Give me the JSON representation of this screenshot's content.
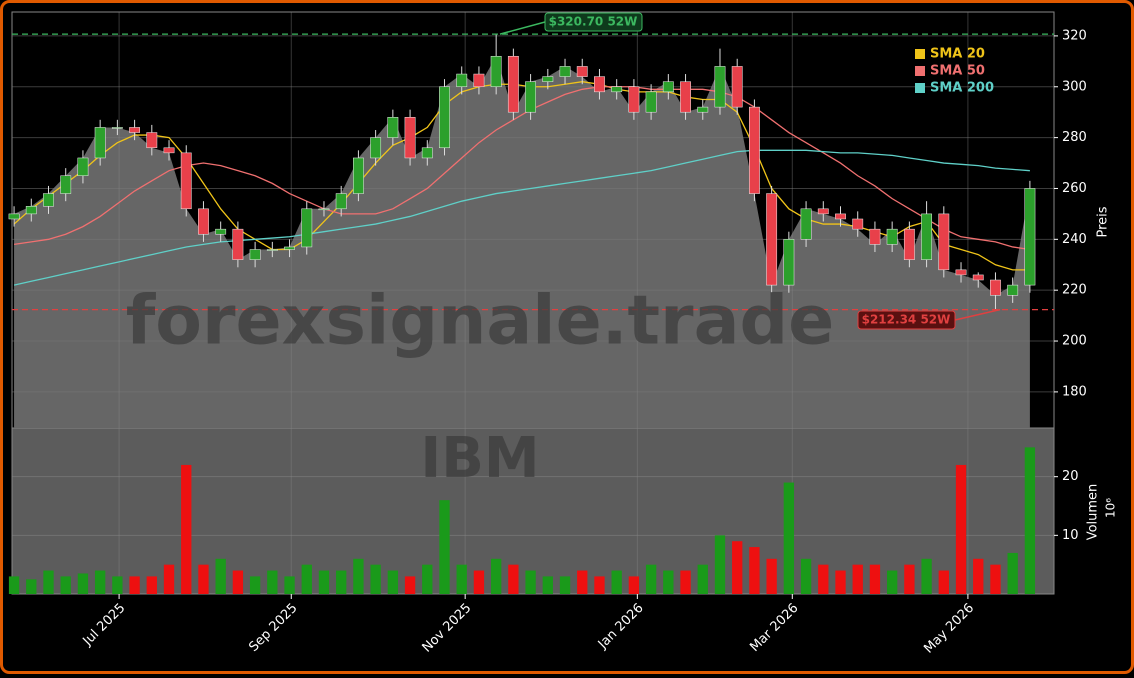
{
  "chart_data": {
    "type": "candlestick",
    "price": {
      "open": [
        248,
        250,
        253,
        258,
        265,
        272,
        284,
        284,
        282,
        276,
        274,
        252,
        242,
        244,
        232,
        236,
        236,
        237,
        252,
        252,
        258,
        272,
        280,
        288,
        272,
        276,
        300,
        305,
        300,
        312,
        290,
        302,
        304,
        308,
        304,
        298,
        300,
        290,
        298,
        302,
        290,
        292,
        308,
        292,
        258,
        222,
        240,
        252,
        250,
        248,
        244,
        238,
        244,
        232,
        250,
        228,
        226,
        224,
        218,
        222
      ],
      "high": [
        253,
        256,
        261,
        268,
        275,
        287,
        287,
        287,
        285,
        279,
        277,
        255,
        247,
        247,
        239,
        239,
        240,
        255,
        255,
        261,
        275,
        283,
        291,
        291,
        279,
        303,
        308,
        308,
        320.7,
        315,
        305,
        307,
        311,
        311,
        307,
        303,
        303,
        301,
        305,
        305,
        295,
        315,
        311,
        295,
        261,
        243,
        255,
        255,
        253,
        251,
        247,
        247,
        247,
        255,
        253,
        231,
        227,
        227,
        225,
        263
      ],
      "low": [
        245,
        247,
        250,
        255,
        262,
        269,
        281,
        279,
        273,
        271,
        249,
        239,
        239,
        229,
        229,
        233,
        233,
        234,
        249,
        249,
        255,
        269,
        277,
        269,
        269,
        273,
        297,
        297,
        297,
        287,
        287,
        299,
        301,
        301,
        295,
        295,
        287,
        287,
        295,
        287,
        287,
        289,
        289,
        255,
        219,
        219,
        237,
        247,
        245,
        241,
        235,
        235,
        229,
        229,
        225,
        223,
        221,
        212.34,
        215,
        219
      ],
      "close": [
        250,
        253,
        258,
        265,
        272,
        284,
        284,
        282,
        276,
        274,
        252,
        242,
        244,
        232,
        236,
        236,
        237,
        252,
        252,
        258,
        272,
        280,
        288,
        272,
        276,
        300,
        305,
        300,
        312,
        290,
        302,
        304,
        308,
        304,
        298,
        300,
        290,
        298,
        302,
        290,
        292,
        308,
        292,
        258,
        222,
        240,
        252,
        250,
        248,
        244,
        238,
        244,
        232,
        250,
        228,
        226,
        224,
        218,
        222,
        260
      ],
      "up_color": "#2ca02c",
      "down_color": "#e8404a"
    },
    "sma": [
      {
        "name": "SMA 20",
        "color": "#f0c419",
        "values": [
          246,
          252,
          257,
          262,
          267,
          273,
          278,
          281,
          281,
          280,
          272,
          262,
          252,
          244,
          240,
          236,
          236,
          240,
          247,
          254,
          262,
          270,
          277,
          280,
          284,
          293,
          298,
          300,
          301,
          301,
          300,
          300,
          301,
          302,
          301,
          299,
          298,
          298,
          298,
          296,
          295,
          295,
          290,
          276,
          260,
          252,
          248,
          246,
          246,
          245,
          243,
          241,
          245,
          247,
          238,
          236,
          234,
          230,
          228,
          228
        ]
      },
      {
        "name": "SMA 50",
        "color": "#f07070",
        "values": [
          238,
          239,
          240,
          242,
          245,
          249,
          254,
          259,
          263,
          267,
          269,
          270,
          269,
          267,
          265,
          262,
          258,
          255,
          252,
          250,
          250,
          250,
          252,
          256,
          260,
          266,
          272,
          278,
          283,
          287,
          291,
          294,
          297,
          299,
          300,
          300,
          300,
          299,
          299,
          299,
          299,
          298,
          296,
          292,
          287,
          282,
          278,
          274,
          270,
          265,
          261,
          256,
          252,
          248,
          244,
          241,
          240,
          239,
          237,
          236
        ]
      },
      {
        "name": "SMA 200",
        "color": "#5fd0c8",
        "values": [
          222,
          223.5,
          225,
          226.5,
          228,
          229.5,
          231,
          232.5,
          234,
          235.5,
          237,
          238,
          239,
          239.5,
          240,
          240.5,
          241,
          242,
          243,
          244,
          245,
          246,
          247.5,
          249,
          251,
          253,
          255,
          256.5,
          258,
          259,
          260,
          261,
          262,
          263,
          264,
          265,
          266,
          267,
          268.5,
          270,
          271.5,
          273,
          274.5,
          275,
          275,
          275,
          275,
          274.5,
          274,
          274,
          273.5,
          273,
          272,
          271,
          270,
          269.5,
          269,
          268,
          267.5,
          267
        ]
      }
    ],
    "volume": {
      "values": [
        3,
        2.5,
        4,
        3,
        3.5,
        4,
        3,
        3,
        3,
        5,
        22,
        5,
        6,
        4,
        3,
        4,
        3,
        5,
        4,
        4,
        6,
        5,
        4,
        3,
        5,
        16,
        5,
        4,
        6,
        5,
        4,
        3,
        3,
        4,
        3,
        4,
        3,
        5,
        4,
        4,
        5,
        10,
        9,
        8,
        6,
        19,
        6,
        5,
        4,
        5,
        5,
        4,
        5,
        6,
        4,
        22,
        6,
        5,
        7,
        25
      ],
      "ylim": [
        0,
        28.3
      ],
      "yticks": [
        10,
        20
      ],
      "ylabel": "Volumen",
      "scale_label": "10⁶"
    },
    "ylim": [
      165.8,
      329.4
    ],
    "yticks": [
      180,
      200,
      220,
      240,
      260,
      280,
      300,
      320
    ],
    "ylabel": "Preis",
    "xlim": [
      -0.12,
      60.4
    ],
    "xticks": [
      {
        "value": 6.1,
        "label": "Jul 2025"
      },
      {
        "value": 16.1,
        "label": "Sep 2025"
      },
      {
        "value": 26.2,
        "label": "Nov 2025"
      },
      {
        "value": 36.2,
        "label": "Jan 2026"
      },
      {
        "value": 45.2,
        "label": "Mar 2026"
      },
      {
        "value": 55.4,
        "label": "May 2026"
      }
    ],
    "high_52w": {
      "value": 320.7,
      "label": "$320.70 52W",
      "color": "#3cb860"
    },
    "low_52w": {
      "value": 212.34,
      "label": "$212.34 52W",
      "color": "#e04040"
    },
    "watermark": "forexsignale.trade",
    "symbol": "IBM",
    "grid": true
  }
}
